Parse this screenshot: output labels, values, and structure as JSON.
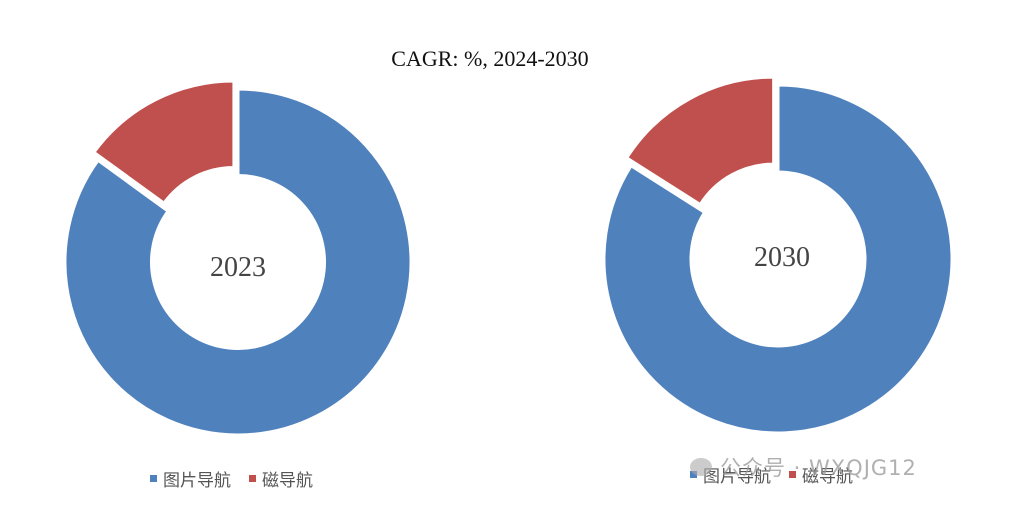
{
  "colors": {
    "blue": "#4F81BD",
    "red": "#C0504D"
  },
  "legend_labels": [
    "图片导航",
    "磁导航"
  ],
  "watermark": "公众号 · WXQJG12",
  "chart_data": [
    {
      "type": "pie",
      "title": "CAGR:  %, 2024-2030",
      "center_label": "2023",
      "categories": [
        "图片导航",
        "磁导航"
      ],
      "values": [
        85,
        15
      ],
      "hole": 0.5,
      "exploded": "磁导航",
      "legend_position": "bottom"
    },
    {
      "type": "pie",
      "title": "",
      "center_label": "2030",
      "categories": [
        "图片导航",
        "磁导航"
      ],
      "values": [
        84,
        16
      ],
      "hole": 0.5,
      "exploded": "磁导航",
      "legend_position": "bottom"
    }
  ]
}
